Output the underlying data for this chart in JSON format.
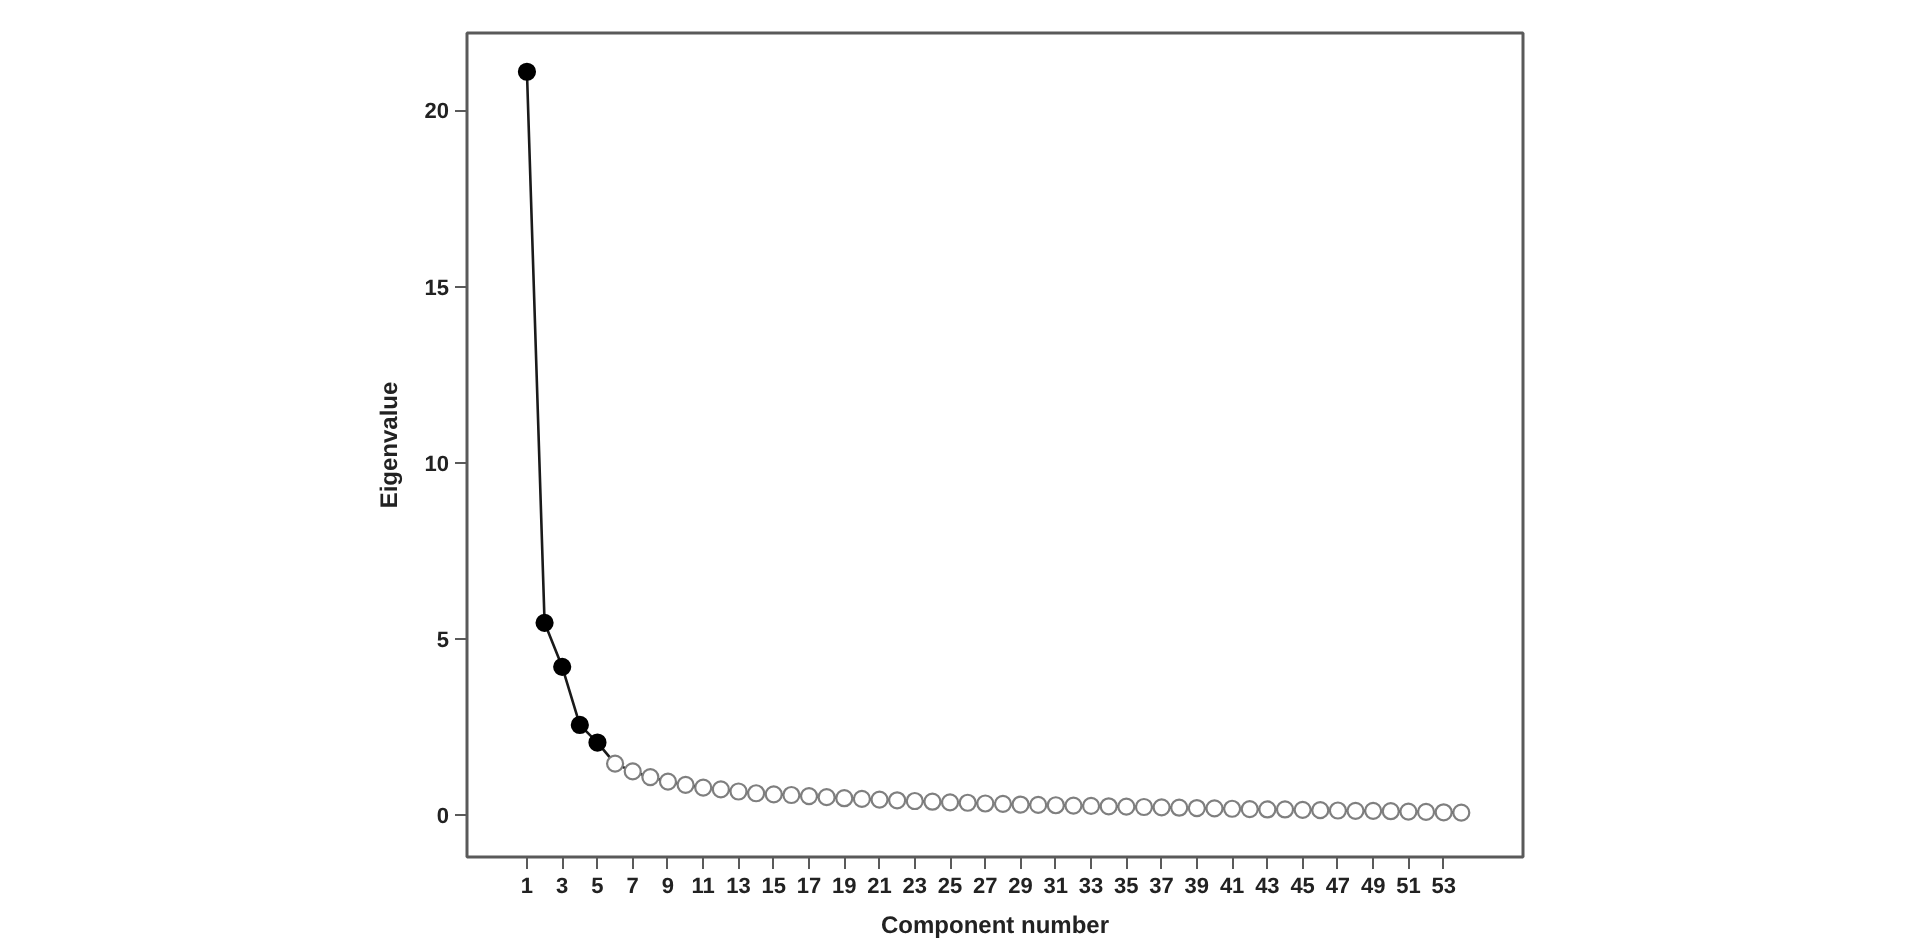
{
  "chart_data": {
    "type": "line",
    "xlabel": "Component number",
    "ylabel": "Eigenvalue",
    "xlim": [
      -2.4,
      57.5
    ],
    "ylim": [
      -1.2,
      22.2
    ],
    "xticks": [
      1,
      3,
      5,
      7,
      9,
      11,
      13,
      15,
      17,
      19,
      21,
      23,
      25,
      27,
      29,
      31,
      33,
      35,
      37,
      39,
      41,
      43,
      45,
      47,
      49,
      51,
      53
    ],
    "yticks": [
      0,
      5,
      10,
      15,
      20
    ],
    "series": [
      {
        "color": "#1a1a1a",
        "marker": "none",
        "x": [
          1,
          2,
          3,
          4,
          5,
          6,
          7,
          8,
          9,
          10,
          11,
          12,
          13,
          14,
          15,
          16,
          17,
          18,
          19,
          20,
          21,
          22,
          23,
          24,
          25,
          26,
          27,
          28,
          29,
          30,
          31,
          32,
          33,
          34,
          35,
          36,
          37,
          38,
          39,
          40,
          41,
          42,
          43,
          44,
          45,
          46,
          47,
          48,
          49,
          50,
          51,
          52,
          53,
          54
        ],
        "values": [
          21.1,
          5.45,
          4.2,
          2.55,
          2.05,
          1.45,
          1.23,
          1.07,
          0.94,
          0.85,
          0.77,
          0.72,
          0.66,
          0.61,
          0.58,
          0.56,
          0.53,
          0.5,
          0.47,
          0.45,
          0.43,
          0.41,
          0.39,
          0.37,
          0.35,
          0.34,
          0.32,
          0.31,
          0.29,
          0.28,
          0.27,
          0.26,
          0.25,
          0.24,
          0.23,
          0.22,
          0.21,
          0.2,
          0.19,
          0.18,
          0.17,
          0.16,
          0.15,
          0.15,
          0.14,
          0.13,
          0.12,
          0.11,
          0.11,
          0.1,
          0.09,
          0.08,
          0.07,
          0.06
        ]
      },
      {
        "type": "scatter",
        "color": "#000000",
        "marker": "circle",
        "x": [
          1,
          2,
          3,
          4,
          5
        ],
        "values": [
          21.1,
          5.45,
          4.2,
          2.55,
          2.05
        ]
      },
      {
        "type": "scatter",
        "color": "#7f7f7f",
        "marker": "circle-open",
        "x": [
          6,
          7,
          8,
          9,
          10,
          11,
          12,
          13,
          14,
          15,
          16,
          17,
          18,
          19,
          20,
          21,
          22,
          23,
          24,
          25,
          26,
          27,
          28,
          29,
          30,
          31,
          32,
          33,
          34,
          35,
          36,
          37,
          38,
          39,
          40,
          41,
          42,
          43,
          44,
          45,
          46,
          47,
          48,
          49,
          50,
          51,
          52,
          53,
          54
        ],
        "values": [
          1.45,
          1.23,
          1.07,
          0.94,
          0.85,
          0.77,
          0.72,
          0.66,
          0.61,
          0.58,
          0.56,
          0.53,
          0.5,
          0.47,
          0.45,
          0.43,
          0.41,
          0.39,
          0.37,
          0.35,
          0.34,
          0.32,
          0.31,
          0.29,
          0.28,
          0.27,
          0.26,
          0.25,
          0.24,
          0.23,
          0.22,
          0.21,
          0.2,
          0.19,
          0.18,
          0.17,
          0.16,
          0.15,
          0.15,
          0.14,
          0.13,
          0.12,
          0.11,
          0.11,
          0.1,
          0.09,
          0.08,
          0.07,
          0.06
        ]
      }
    ]
  }
}
